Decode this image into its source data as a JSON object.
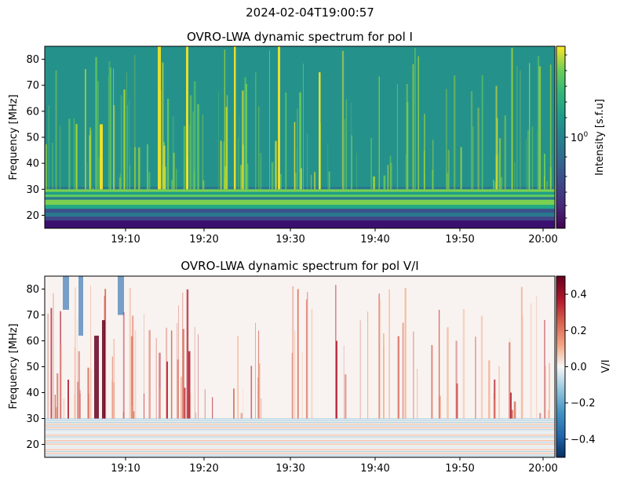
{
  "figure": {
    "suptitle": "2024-02-04T19:00:57"
  },
  "chart_data": [
    {
      "type": "heatmap",
      "title": "OVRO-LWA dynamic spectrum for pol I",
      "xlabel": "",
      "ylabel": "Frequency [MHz]",
      "x_tick_labels": [
        "19:10",
        "19:20",
        "19:30",
        "19:40",
        "19:50",
        "20:00"
      ],
      "x_range": [
        "19:01",
        "20:01"
      ],
      "y_ticks": [
        20,
        30,
        40,
        50,
        60,
        70,
        80
      ],
      "ylim": [
        15,
        85
      ],
      "colormap": "viridis",
      "colorbar": {
        "label": "Intensity [s.f.u]",
        "scale": "log",
        "tick_label": "10^0",
        "tick_value": 1
      },
      "colors": {
        "background_band": "#21918c",
        "bright_burst": "#fde725",
        "low_band": "#3b0f70",
        "mid_band": "#5ec962"
      }
    },
    {
      "type": "heatmap",
      "title": "OVRO-LWA dynamic spectrum for pol V/I",
      "xlabel": "",
      "ylabel": "Frequency [MHz]",
      "x_tick_labels": [
        "19:10",
        "19:20",
        "19:30",
        "19:40",
        "19:50",
        "20:00"
      ],
      "x_range": [
        "19:01",
        "20:01"
      ],
      "y_ticks": [
        20,
        30,
        40,
        50,
        60,
        70,
        80
      ],
      "ylim": [
        15,
        85
      ],
      "colormap": "RdBu_r",
      "colorbar": {
        "label": "V/I",
        "scale": "linear",
        "range": [
          -0.5,
          0.5
        ],
        "ticks": [
          0.4,
          0.2,
          0.0,
          -0.2,
          -0.4
        ],
        "tick_labels": [
          "0.4",
          "0.2",
          "0.0",
          "−0.2",
          "−0.4"
        ]
      },
      "colors": {
        "neutral": "#f7f4f1",
        "positive_strong": "#67001f",
        "positive": "#d6604d",
        "negative": "#2166ac"
      }
    }
  ]
}
